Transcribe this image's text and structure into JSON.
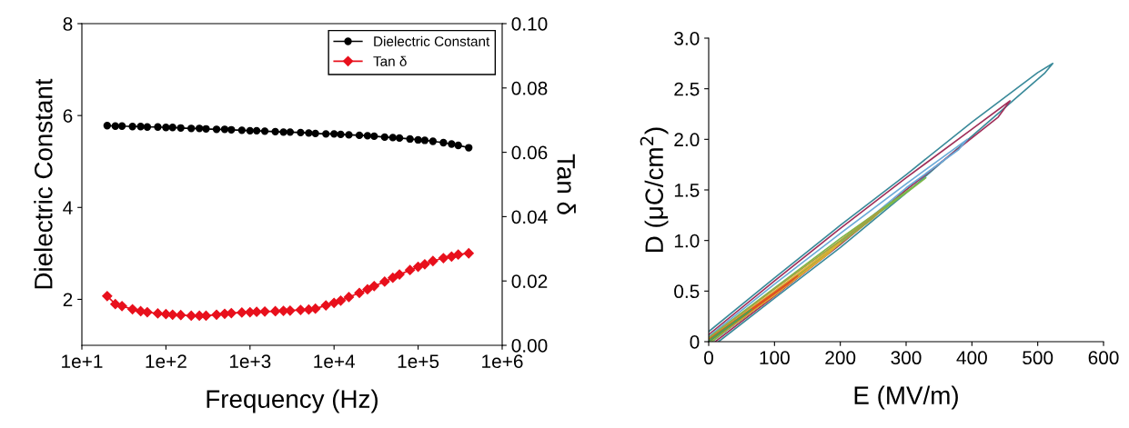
{
  "chart_data": [
    {
      "type": "line",
      "xlabel": "Frequency (Hz)",
      "ylabel": "Dielectric Constant",
      "y2label": "Tan δ",
      "log": "x",
      "legend": "top right",
      "grid": false,
      "x": [
        20,
        25,
        30,
        40,
        50,
        60,
        80,
        100,
        120,
        150,
        200,
        250,
        300,
        400,
        500,
        600,
        800,
        1000,
        1200,
        1500,
        2000,
        2500,
        3000,
        4000,
        5000,
        6000,
        8000,
        10000,
        12000,
        15000,
        20000,
        25000,
        30000,
        40000,
        50000,
        60000,
        80000,
        100000,
        120000,
        150000,
        200000,
        250000,
        300000,
        400000
      ],
      "xlim": [
        10,
        1000000
      ],
      "xticks": [
        {
          "value": 10,
          "label": "1e+1"
        },
        {
          "value": 100,
          "label": "1e+2"
        },
        {
          "value": 1000,
          "label": "1e+3"
        },
        {
          "value": 10000,
          "label": "1e+4"
        },
        {
          "value": 100000,
          "label": "1e+5"
        },
        {
          "value": 1000000,
          "label": "1e+6"
        }
      ],
      "ylim": [
        1,
        8
      ],
      "yticks": [
        2,
        4,
        6,
        8
      ],
      "y2lim": [
        0,
        0.1
      ],
      "y2ticks": [
        {
          "value": 0,
          "label": "0.00"
        },
        {
          "value": 0.02,
          "label": "0.02"
        },
        {
          "value": 0.04,
          "label": "0.04"
        },
        {
          "value": 0.06,
          "label": "0.06"
        },
        {
          "value": 0.08,
          "label": "0.08"
        },
        {
          "value": 0.1,
          "label": "0.10"
        }
      ],
      "series": [
        {
          "name": "Dielectric Constant",
          "color": "#000000",
          "marker": "circle",
          "values": [
            5.78,
            5.77,
            5.77,
            5.76,
            5.76,
            5.75,
            5.75,
            5.74,
            5.74,
            5.73,
            5.72,
            5.72,
            5.71,
            5.7,
            5.7,
            5.69,
            5.68,
            5.67,
            5.67,
            5.66,
            5.65,
            5.64,
            5.64,
            5.63,
            5.62,
            5.61,
            5.6,
            5.6,
            5.59,
            5.58,
            5.57,
            5.56,
            5.55,
            5.53,
            5.52,
            5.51,
            5.49,
            5.47,
            5.46,
            5.44,
            5.41,
            5.38,
            5.35,
            5.3
          ]
        },
        {
          "name": "Tan δ",
          "color": "#e8101c",
          "marker": "diamond",
          "axis": "y2",
          "values": [
            0.0153,
            0.0128,
            0.0122,
            0.0112,
            0.0106,
            0.0103,
            0.0099,
            0.0097,
            0.0095,
            0.0094,
            0.0092,
            0.0092,
            0.0092,
            0.0095,
            0.0098,
            0.01,
            0.0102,
            0.0103,
            0.0104,
            0.0105,
            0.0106,
            0.0107,
            0.0108,
            0.011,
            0.0111,
            0.0114,
            0.0124,
            0.0132,
            0.0139,
            0.015,
            0.0163,
            0.0174,
            0.0184,
            0.0198,
            0.021,
            0.022,
            0.0234,
            0.0244,
            0.0252,
            0.0262,
            0.0271,
            0.0276,
            0.0282,
            0.0286
          ]
        }
      ]
    },
    {
      "type": "line",
      "xlabel": "E (MV/m)",
      "ylabel": "D (μC/cm$^{2}$)",
      "grid": false,
      "legend": false,
      "xlim": [
        0,
        600
      ],
      "xticks": [
        0,
        100,
        200,
        300,
        400,
        500,
        600
      ],
      "ylim": [
        0,
        3
      ],
      "yticks": [
        {
          "value": 0,
          "label": "0"
        },
        {
          "value": 0.5,
          "label": "0.5"
        },
        {
          "value": 1,
          "label": "1.0"
        },
        {
          "value": 1.5,
          "label": "1.5"
        },
        {
          "value": 2,
          "label": "2.0"
        },
        {
          "value": 2.5,
          "label": "2.5"
        },
        {
          "value": 3,
          "label": "3.0"
        }
      ],
      "series": [
        {
          "color": "#3a8a9a",
          "x": [
            0,
            100,
            200,
            300,
            400,
            500,
            523,
            510,
            400,
            300,
            200,
            100,
            15
          ],
          "values": [
            0.1,
            0.63,
            1.15,
            1.65,
            2.17,
            2.66,
            2.75,
            2.65,
            2.03,
            1.47,
            0.93,
            0.43,
            0
          ]
        },
        {
          "color": "#a0305a",
          "x": [
            0,
            100,
            200,
            300,
            400,
            458,
            440,
            300,
            200,
            100,
            10
          ],
          "values": [
            0.07,
            0.6,
            1.12,
            1.62,
            2.1,
            2.38,
            2.22,
            1.5,
            0.96,
            0.45,
            0
          ]
        },
        {
          "color": "#6aaad8",
          "x": [
            0,
            100,
            200,
            300,
            393,
            380,
            300,
            200,
            100,
            5
          ],
          "values": [
            0.05,
            0.57,
            1.07,
            1.56,
            2.0,
            1.9,
            1.52,
            0.98,
            0.47,
            0
          ]
        },
        {
          "color": "#7cb84a",
          "x": [
            0,
            100,
            200,
            330,
            310,
            200,
            100,
            5
          ],
          "values": [
            0.04,
            0.53,
            1.02,
            1.62,
            1.52,
            0.99,
            0.48,
            0
          ]
        },
        {
          "color": "#a8a040",
          "x": [
            0,
            100,
            200,
            265,
            250,
            150,
            50,
            0
          ],
          "values": [
            0.03,
            0.52,
            1.0,
            1.32,
            1.22,
            0.72,
            0.22,
            0
          ]
        },
        {
          "color": "#e0b030",
          "x": [
            0,
            100,
            200,
            180,
            100,
            0
          ],
          "values": [
            0.02,
            0.5,
            0.98,
            0.86,
            0.46,
            0
          ]
        },
        {
          "color": "#e05020",
          "x": [
            0,
            135,
            120,
            0
          ],
          "values": [
            0.02,
            0.65,
            0.57,
            0
          ]
        },
        {
          "color": "#50a050",
          "x": [
            0,
            65,
            58,
            0
          ],
          "values": [
            0.01,
            0.32,
            0.28,
            0
          ]
        }
      ]
    }
  ]
}
